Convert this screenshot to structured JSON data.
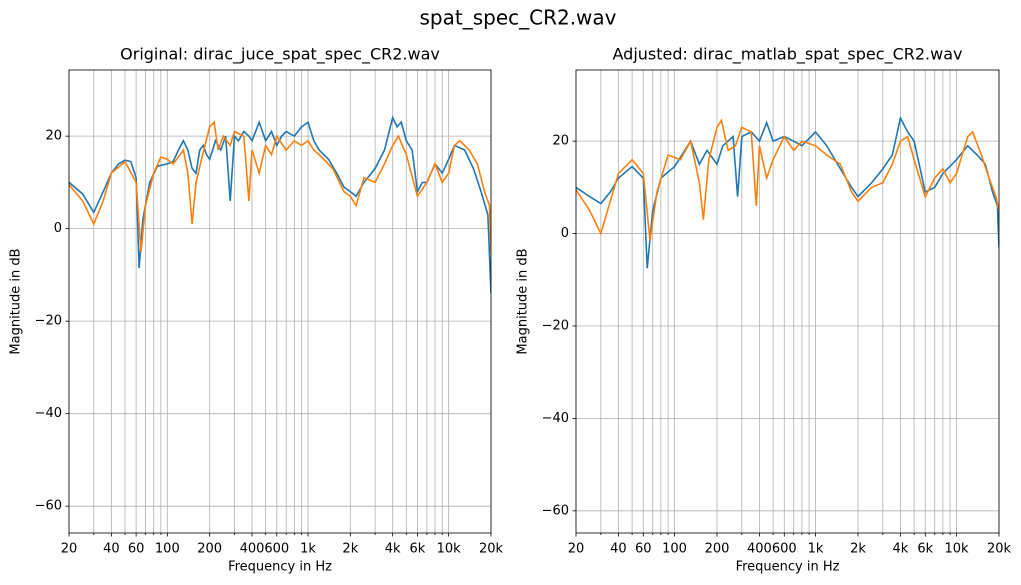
{
  "title": "spat_spec_CR2.wav",
  "chart_data": [
    {
      "type": "line",
      "title": "Original: dirac_juce_spat_spec_CR2.wav",
      "xlabel": "Frequency in Hz",
      "ylabel": "Magnitude in dB",
      "xscale": "log",
      "xlim": [
        20,
        20000
      ],
      "xticks": [
        20,
        40,
        60,
        100,
        200,
        400,
        600,
        {
          "value": 1000,
          "label": "1k"
        },
        {
          "value": 2000,
          "label": "2k"
        },
        {
          "value": 4000,
          "label": "4k"
        },
        {
          "value": 6000,
          "label": "6k"
        },
        {
          "value": 10000,
          "label": "10k"
        },
        {
          "value": 20000,
          "label": "20k"
        }
      ],
      "x_minor_ticks": [
        30,
        50,
        70,
        80,
        90,
        300,
        500,
        700,
        800,
        900,
        3000,
        5000,
        7000,
        8000,
        9000
      ],
      "ylim": [
        -65.8,
        34.3
      ],
      "yticks": [
        {
          "value": -60,
          "label": "−60"
        },
        {
          "value": -40,
          "label": "−40"
        },
        {
          "value": -20,
          "label": "−20"
        },
        0,
        20
      ],
      "grid": true,
      "series": [
        {
          "color": "#1f77b4",
          "x": [
            20,
            25,
            30,
            35,
            40,
            45,
            50,
            55,
            60,
            63,
            67,
            75,
            85,
            100,
            110,
            120,
            130,
            140,
            150,
            160,
            170,
            180,
            190,
            200,
            220,
            240,
            260,
            280,
            300,
            320,
            350,
            380,
            400,
            450,
            500,
            550,
            600,
            650,
            700,
            800,
            900,
            1000,
            1100,
            1200,
            1400,
            1600,
            1800,
            2000,
            2200,
            2500,
            3000,
            3500,
            4000,
            4300,
            4600,
            5000,
            5500,
            6000,
            6500,
            7000,
            8000,
            9000,
            10000,
            11000,
            13000,
            15000,
            17000,
            19000,
            20000
          ],
          "values": [
            10,
            7.5,
            3.5,
            8,
            12,
            14,
            14.8,
            14.5,
            11,
            -8.5,
            2,
            10,
            13.5,
            14,
            14.5,
            17,
            19,
            17,
            13,
            12,
            17,
            18,
            16,
            15,
            19,
            17,
            20,
            6,
            20,
            19,
            21,
            20,
            19,
            23,
            19,
            21,
            18,
            20,
            21,
            20,
            22,
            23,
            19,
            17,
            15,
            12,
            9,
            8,
            7,
            10,
            13,
            17,
            24,
            22,
            23,
            19,
            17,
            8,
            10,
            10,
            14,
            12,
            15,
            18,
            17,
            13,
            8,
            3,
            -14
          ]
        },
        {
          "color": "#ff7f0e",
          "x": [
            20,
            25,
            30,
            35,
            40,
            50,
            60,
            65,
            70,
            80,
            90,
            100,
            110,
            120,
            130,
            140,
            150,
            160,
            175,
            200,
            215,
            230,
            250,
            280,
            300,
            350,
            380,
            400,
            450,
            500,
            550,
            600,
            700,
            800,
            900,
            1000,
            1100,
            1200,
            1500,
            1800,
            2000,
            2200,
            2500,
            3000,
            3500,
            4000,
            4400,
            5000,
            6000,
            7000,
            8000,
            9000,
            10000,
            11000,
            12000,
            14000,
            16000,
            18000,
            19500,
            20000
          ],
          "values": [
            9.5,
            6,
            1,
            6,
            12,
            14.5,
            10,
            -5,
            5,
            12,
            15.5,
            15,
            14,
            15.5,
            17,
            12,
            1,
            10,
            15,
            22,
            23,
            17,
            20,
            18,
            21,
            20,
            6,
            17,
            12,
            18,
            16,
            20,
            17,
            19,
            18,
            19,
            17,
            16,
            13,
            8,
            7,
            5,
            11,
            10,
            14,
            18,
            20,
            16,
            7,
            10,
            14,
            10,
            12,
            18,
            19,
            17,
            14,
            8,
            5,
            -5
          ]
        }
      ]
    },
    {
      "type": "line",
      "title": "Adjusted: dirac_matlab_spat_spec_CR2.wav",
      "xlabel": "Frequency in Hz",
      "ylabel": "Magnitude in dB",
      "xscale": "log",
      "xlim": [
        20,
        20000
      ],
      "xticks": [
        20,
        40,
        60,
        100,
        200,
        400,
        600,
        {
          "value": 1000,
          "label": "1k"
        },
        {
          "value": 2000,
          "label": "2k"
        },
        {
          "value": 4000,
          "label": "4k"
        },
        {
          "value": 6000,
          "label": "6k"
        },
        {
          "value": 10000,
          "label": "10k"
        },
        {
          "value": 20000,
          "label": "20k"
        }
      ],
      "x_minor_ticks": [
        30,
        50,
        70,
        80,
        90,
        300,
        500,
        700,
        800,
        900,
        3000,
        5000,
        7000,
        8000,
        9000
      ],
      "ylim": [
        -64.8,
        35.4
      ],
      "yticks": [
        {
          "value": -60,
          "label": "−60"
        },
        {
          "value": -40,
          "label": "−40"
        },
        {
          "value": -20,
          "label": "−20"
        },
        0,
        20
      ],
      "grid": true,
      "series": [
        {
          "color": "#1f77b4",
          "x": [
            20,
            25,
            30,
            35,
            40,
            50,
            60,
            64,
            70,
            80,
            100,
            130,
            150,
            170,
            200,
            220,
            260,
            280,
            300,
            350,
            400,
            450,
            500,
            600,
            700,
            800,
            1000,
            1200,
            1500,
            1800,
            2000,
            2500,
            3000,
            3500,
            4000,
            4500,
            5000,
            6000,
            7000,
            8000,
            10000,
            12000,
            14000,
            16000,
            18000,
            19500,
            20000
          ],
          "values": [
            10,
            8,
            6.5,
            9,
            12,
            14.5,
            12,
            -7.5,
            5,
            12,
            14.5,
            20,
            15,
            18,
            15,
            19,
            21,
            8,
            21,
            22,
            20,
            24,
            20,
            21,
            20,
            19,
            22,
            19,
            14,
            10,
            8,
            11,
            14,
            17,
            25,
            22,
            20,
            9,
            10,
            13,
            16,
            19,
            17,
            15,
            9,
            6,
            -3
          ]
        },
        {
          "color": "#ff7f0e",
          "x": [
            20,
            25,
            30,
            35,
            40,
            50,
            60,
            67,
            75,
            90,
            110,
            130,
            150,
            160,
            175,
            200,
            215,
            240,
            270,
            300,
            350,
            380,
            400,
            450,
            500,
            600,
            700,
            800,
            1000,
            1200,
            1500,
            1800,
            2000,
            2500,
            3000,
            3500,
            4000,
            4500,
            5000,
            6000,
            7000,
            8000,
            9000,
            10000,
            12000,
            13000,
            15000,
            17000,
            19000,
            20000
          ],
          "values": [
            9.5,
            5,
            0,
            7,
            13,
            16,
            13,
            -1.5,
            9,
            17,
            16,
            20,
            11,
            3,
            16,
            23,
            24.5,
            18,
            19,
            23,
            22,
            6,
            19,
            12,
            16,
            21,
            18,
            20,
            19,
            17,
            15,
            9,
            7,
            10,
            11,
            15,
            20,
            21,
            16,
            8,
            12,
            14,
            11,
            13,
            21,
            22,
            17,
            12,
            8,
            5
          ]
        }
      ]
    }
  ]
}
